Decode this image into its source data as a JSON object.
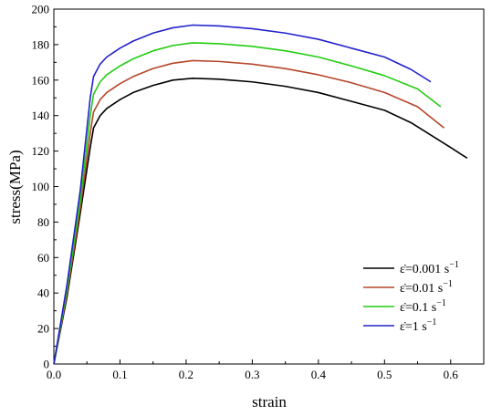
{
  "chart_data": {
    "type": "line",
    "title": "",
    "xlabel": "strain",
    "ylabel": "stress(MPa)",
    "xlim": [
      0,
      0.65
    ],
    "ylim": [
      0,
      200
    ],
    "xticks": [
      0.0,
      0.1,
      0.2,
      0.3,
      0.4,
      0.5,
      0.6
    ],
    "xtick_labels": [
      "0.0",
      "0.1",
      "0.2",
      "0.3",
      "0.4",
      "0.5",
      "0.6"
    ],
    "yticks": [
      0,
      20,
      40,
      60,
      80,
      100,
      120,
      140,
      160,
      180,
      200
    ],
    "ytick_labels": [
      "0",
      "20",
      "40",
      "60",
      "80",
      "100",
      "120",
      "140",
      "160",
      "180",
      "200"
    ],
    "grid": false,
    "legend_position": "bottom-right",
    "series": [
      {
        "name": "ε̇=0.001 s",
        "name_sup": "−1",
        "color": "#000000",
        "points": [
          [
            0,
            0
          ],
          [
            0.02,
            38
          ],
          [
            0.04,
            85
          ],
          [
            0.055,
            122
          ],
          [
            0.06,
            133
          ],
          [
            0.07,
            140
          ],
          [
            0.08,
            144
          ],
          [
            0.1,
            149
          ],
          [
            0.12,
            153
          ],
          [
            0.15,
            157
          ],
          [
            0.18,
            160
          ],
          [
            0.21,
            161
          ],
          [
            0.25,
            160.5
          ],
          [
            0.3,
            159
          ],
          [
            0.35,
            156.5
          ],
          [
            0.4,
            153
          ],
          [
            0.45,
            148
          ],
          [
            0.5,
            143
          ],
          [
            0.54,
            136
          ],
          [
            0.57,
            129
          ],
          [
            0.6,
            122
          ],
          [
            0.625,
            116
          ]
        ]
      },
      {
        "name": "ε̇=0.01 s",
        "name_sup": "−1",
        "color": "#b5462a",
        "points": [
          [
            0,
            0
          ],
          [
            0.02,
            40
          ],
          [
            0.04,
            88
          ],
          [
            0.055,
            130
          ],
          [
            0.06,
            142
          ],
          [
            0.07,
            149
          ],
          [
            0.08,
            153
          ],
          [
            0.1,
            158
          ],
          [
            0.12,
            162
          ],
          [
            0.15,
            166.5
          ],
          [
            0.18,
            169.5
          ],
          [
            0.21,
            171
          ],
          [
            0.25,
            170.5
          ],
          [
            0.3,
            169
          ],
          [
            0.35,
            166.5
          ],
          [
            0.4,
            163
          ],
          [
            0.45,
            158.5
          ],
          [
            0.5,
            153
          ],
          [
            0.55,
            145
          ],
          [
            0.59,
            133
          ]
        ]
      },
      {
        "name": "ε̇=0.1 s",
        "name_sup": "−1",
        "color": "#22cc11",
        "points": [
          [
            0,
            0
          ],
          [
            0.02,
            42
          ],
          [
            0.04,
            92
          ],
          [
            0.055,
            140
          ],
          [
            0.06,
            152
          ],
          [
            0.07,
            159
          ],
          [
            0.08,
            163
          ],
          [
            0.1,
            168
          ],
          [
            0.12,
            172
          ],
          [
            0.15,
            176.5
          ],
          [
            0.18,
            179.5
          ],
          [
            0.21,
            181
          ],
          [
            0.25,
            180.5
          ],
          [
            0.3,
            179
          ],
          [
            0.35,
            176.5
          ],
          [
            0.4,
            173
          ],
          [
            0.45,
            168
          ],
          [
            0.5,
            162.5
          ],
          [
            0.55,
            155
          ],
          [
            0.585,
            145
          ]
        ]
      },
      {
        "name": "ε̇=1 s",
        "name_sup": "−1",
        "color": "#2222cc",
        "points": [
          [
            0,
            0
          ],
          [
            0.02,
            45
          ],
          [
            0.04,
            98
          ],
          [
            0.055,
            150
          ],
          [
            0.06,
            162
          ],
          [
            0.07,
            169
          ],
          [
            0.08,
            173
          ],
          [
            0.1,
            178
          ],
          [
            0.12,
            182
          ],
          [
            0.15,
            186.5
          ],
          [
            0.18,
            189.5
          ],
          [
            0.21,
            191
          ],
          [
            0.25,
            190.5
          ],
          [
            0.3,
            189
          ],
          [
            0.35,
            186.5
          ],
          [
            0.4,
            183
          ],
          [
            0.45,
            178
          ],
          [
            0.5,
            173
          ],
          [
            0.54,
            166
          ],
          [
            0.57,
            159
          ]
        ]
      }
    ]
  }
}
